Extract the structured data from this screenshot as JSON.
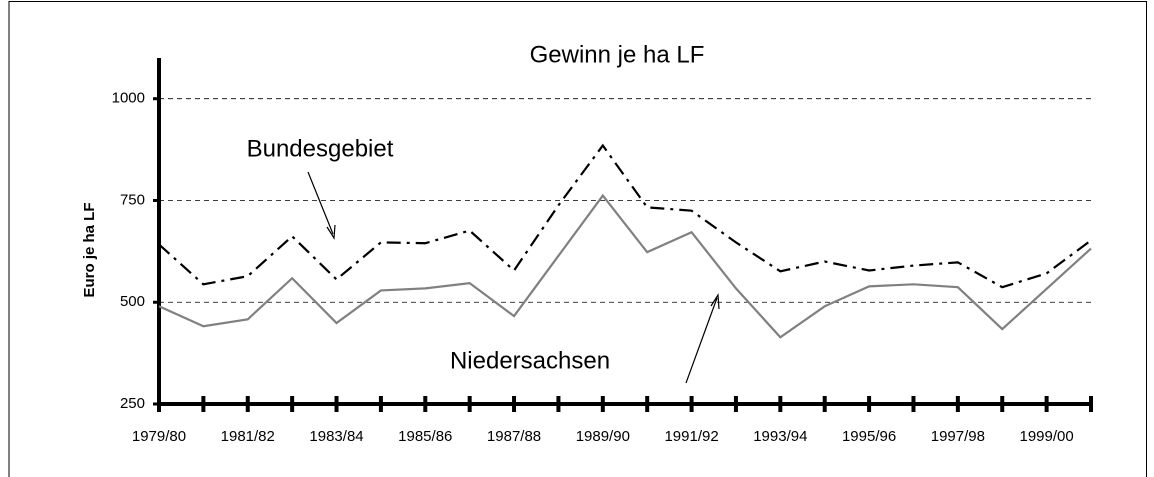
{
  "chart_data": {
    "type": "line",
    "title": "Gewinn je ha LF",
    "y_label": "Euro je ha LF",
    "categories": [
      "1979/80",
      null,
      "1981/82",
      null,
      "1983/84",
      null,
      "1985/86",
      null,
      "1987/88",
      null,
      "1989/90",
      null,
      "1991/92",
      null,
      "1993/94",
      null,
      "1995/96",
      null,
      "1997/98",
      null,
      "1999/00",
      null
    ],
    "series": [
      {
        "name": "Bundesgebiet",
        "color": "#000000",
        "dash": "dashdot",
        "values": [
          642,
          544,
          564,
          662,
          556,
          647,
          645,
          676,
          578,
          738,
          885,
          733,
          725,
          647,
          576,
          600,
          578,
          590,
          598,
          537,
          571,
          652
        ]
      },
      {
        "name": "Niedersachsen",
        "color": "#808080",
        "dash": "solid",
        "values": [
          490,
          441,
          458,
          559,
          449,
          529,
          534,
          547,
          466,
          614,
          762,
          623,
          672,
          534,
          414,
          490,
          539,
          544,
          537,
          434,
          533,
          632
        ]
      }
    ],
    "ylim": [
      250,
      1100
    ],
    "yticks": [
      250,
      500,
      750,
      1000
    ],
    "grid": true
  }
}
